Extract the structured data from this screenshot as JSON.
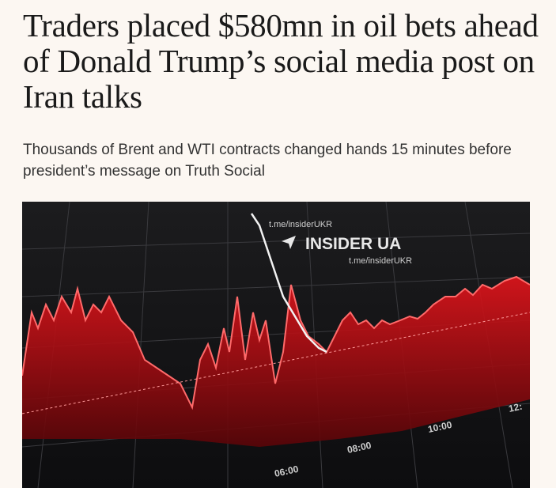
{
  "article": {
    "headline": "Traders placed $580mn in oil bets ahead of Donald Trump’s social media post on Iran talks",
    "standfirst": "Thousands of Brent and WTI contracts changed hands 15 minutes before president’s message on Truth Social",
    "image": {
      "watermark_top": "t.me/insiderUKR",
      "watermark_brand": "INSIDER UA",
      "watermark_bottom": "t.me/insiderUKR",
      "time_labels": [
        "06:00",
        "08:00",
        "10:00",
        "12:"
      ]
    }
  }
}
